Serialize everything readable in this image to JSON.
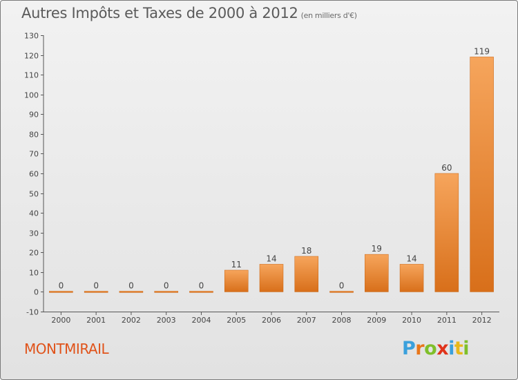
{
  "header": {
    "title": "Autres Impôts et Taxes de 2000 à 2012",
    "unit": "(en milliers d'€)"
  },
  "footer": {
    "commune": "MONTMIRAIL",
    "logo_letters": [
      "P",
      "r",
      "o",
      "x",
      "i",
      "t",
      "i"
    ],
    "logo_colors": [
      "#3aa0dc",
      "#e8761a",
      "#7fbf2a",
      "#e0331a",
      "#3aa0dc",
      "#e8b81a",
      "#7fbf2a"
    ]
  },
  "chart_data": {
    "type": "bar",
    "title": "Autres Impôts et Taxes de 2000 à 2012",
    "xlabel": "",
    "ylabel": "",
    "categories": [
      "2000",
      "2001",
      "2002",
      "2003",
      "2004",
      "2005",
      "2006",
      "2007",
      "2008",
      "2009",
      "2010",
      "2011",
      "2012"
    ],
    "values": [
      0,
      0,
      0,
      0,
      0,
      11,
      14,
      18,
      0,
      19,
      14,
      60,
      119
    ],
    "data_labels": [
      "0",
      "0",
      "0",
      "0",
      "0",
      "11",
      "14",
      "18",
      "0",
      "19",
      "14",
      "60",
      "119"
    ],
    "ylim": [
      -10,
      130
    ],
    "yticks": [
      -10,
      0,
      10,
      20,
      30,
      40,
      50,
      60,
      70,
      80,
      90,
      100,
      110,
      120,
      130
    ],
    "ytick_labels": [
      "-10",
      "0",
      "10",
      "20",
      "30",
      "40",
      "50",
      "60",
      "70",
      "80",
      "90",
      "100",
      "110",
      "120",
      "130"
    ],
    "grid": false,
    "colors": {
      "bar_light": "#f6a55c",
      "bar_dark": "#d86f1a",
      "axis": "#555555",
      "text": "#444444"
    }
  }
}
